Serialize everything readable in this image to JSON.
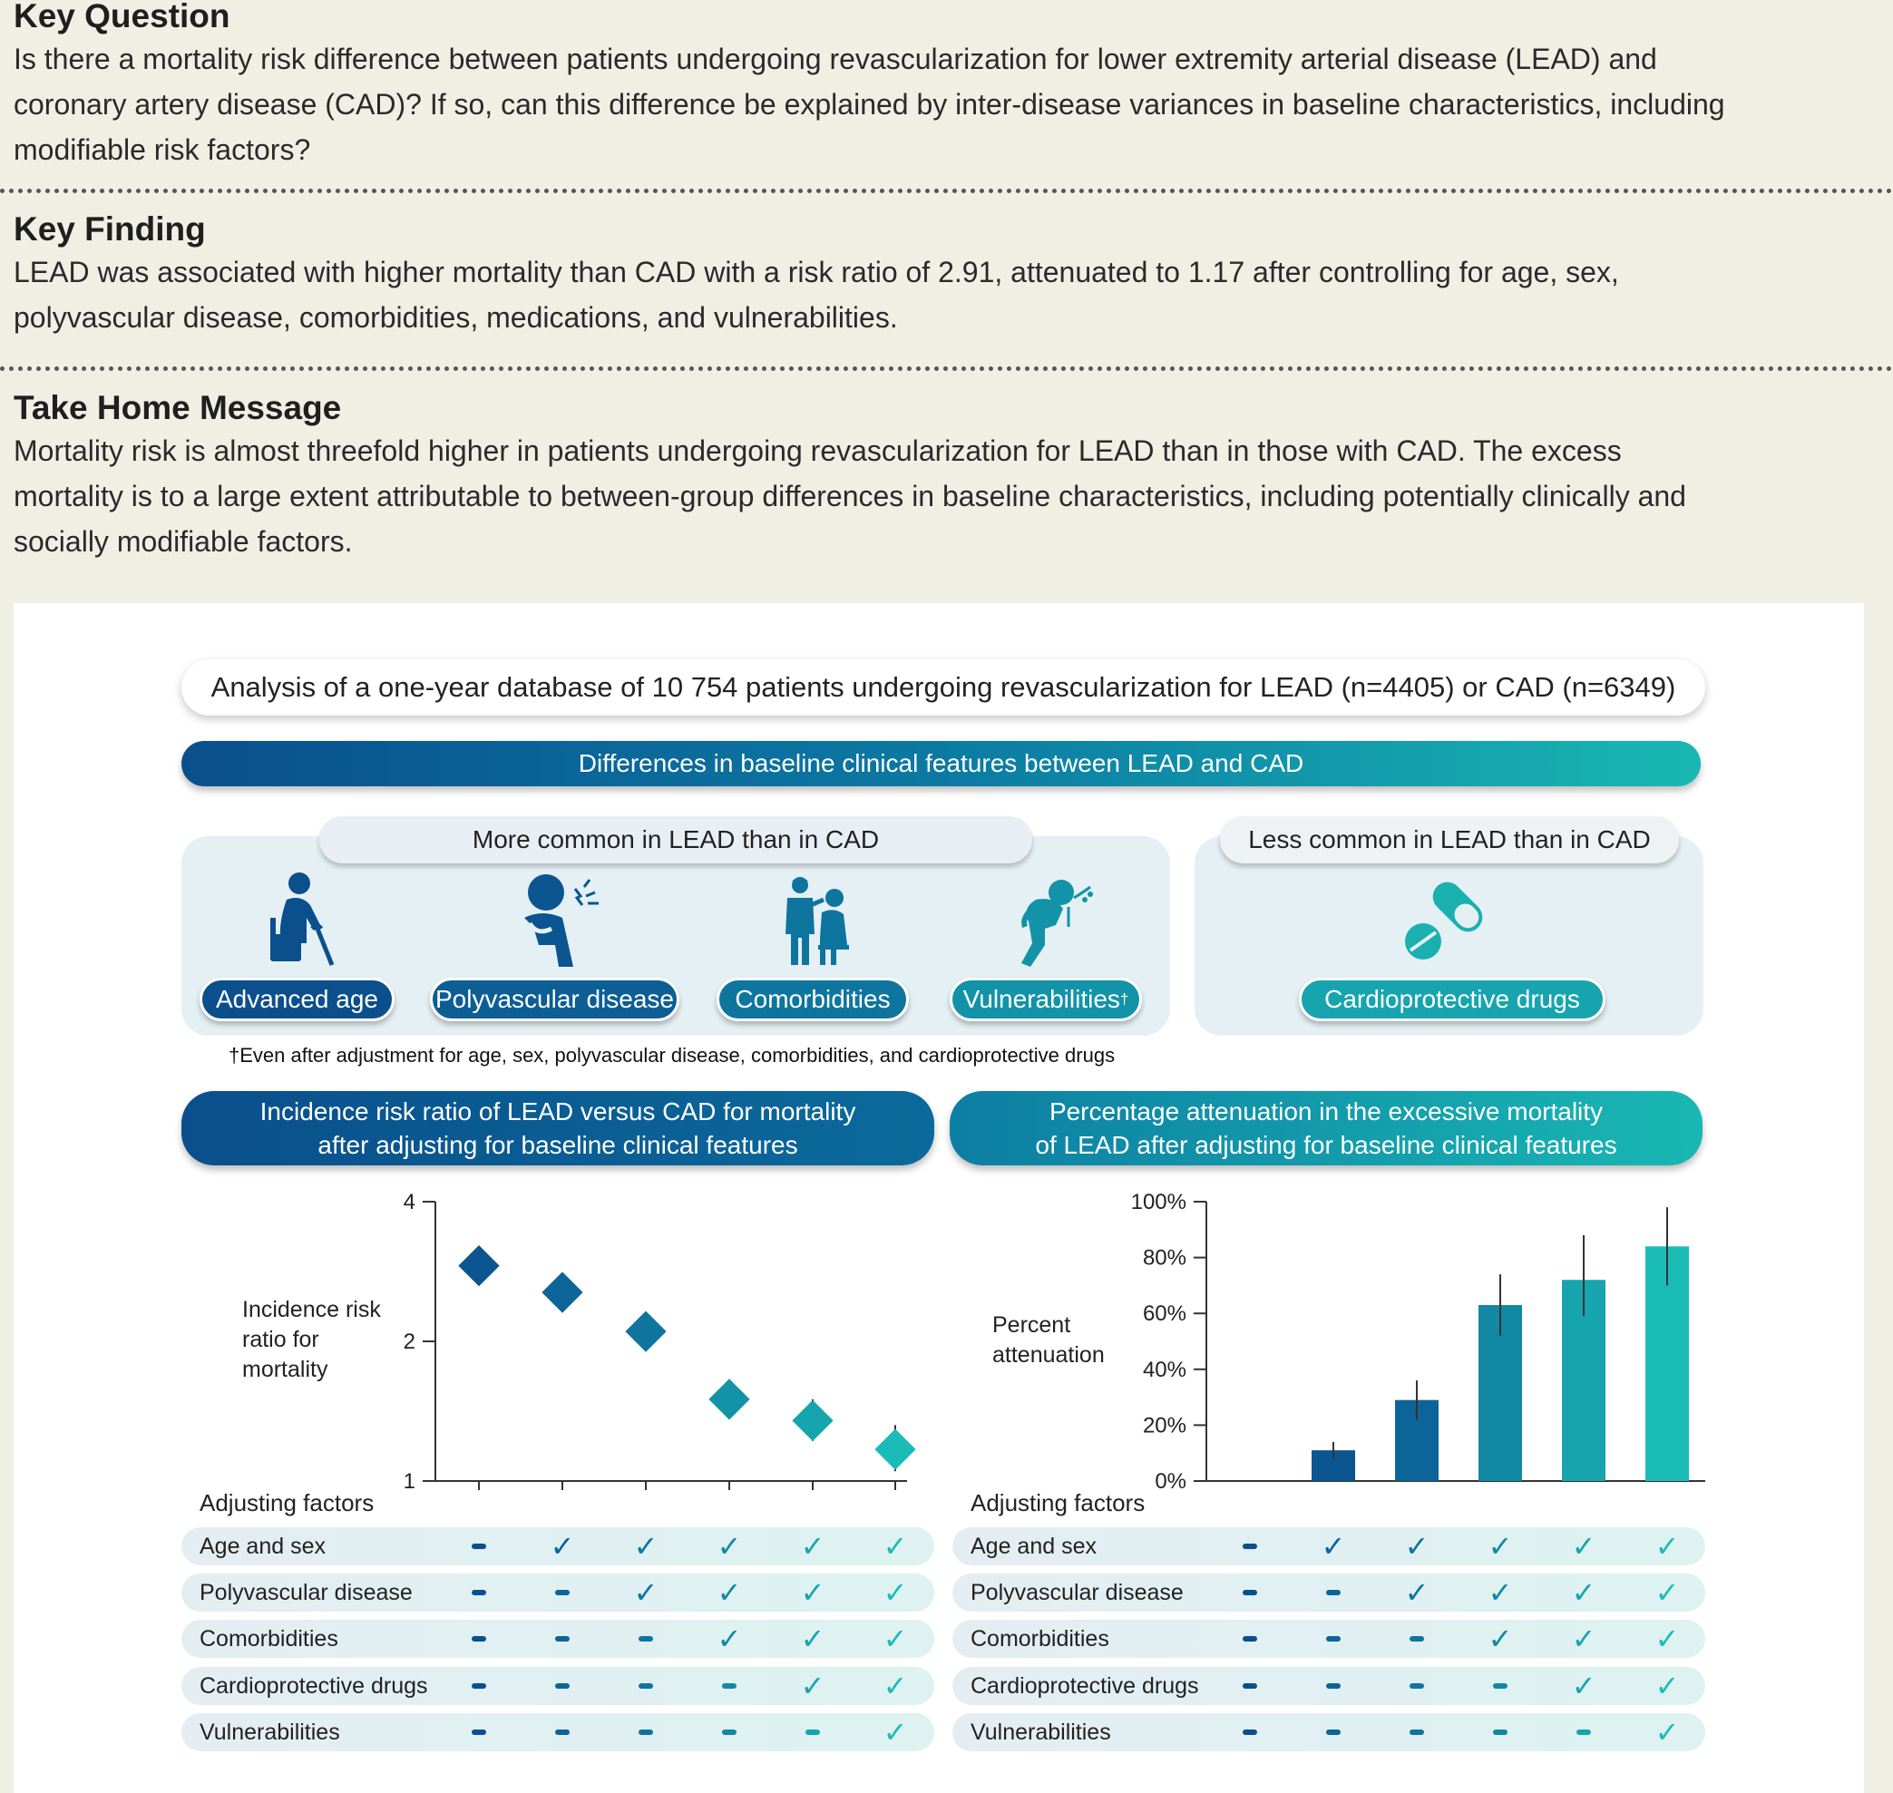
{
  "key_question": {
    "title": "Key Question",
    "line1": "Is there a mortality risk difference between patients undergoing revascularization for lower extremity arterial disease (LEAD) and",
    "line2": "coronary artery disease (CAD)? If so, can this difference be explained by inter-disease variances in baseline characteristics, including",
    "line3": "modifiable risk factors?"
  },
  "key_finding": {
    "title": "Key Finding",
    "line1": "LEAD was associated with higher mortality than CAD with a risk ratio of 2.91, attenuated to 1.17 after controlling for age, sex,",
    "line2": "polyvascular disease, comorbidities, medications, and vulnerabilities."
  },
  "take_home": {
    "title": "Take Home Message",
    "line1": "Mortality risk is almost threefold higher in patients undergoing revascularization for LEAD than in those with CAD. The excess",
    "line2": "mortality is to a large extent attributable to between-group differences in baseline characteristics, including potentially clinically and",
    "line3": "socially modifiable factors."
  },
  "analysis_text": "Analysis of a one-year database of 10 754 patients undergoing revascularization for LEAD (n=4405) or CAD (n=6349)",
  "differences_banner": "Differences in baseline clinical features between LEAD and CAD",
  "more_common": {
    "title": "More common in LEAD than in CAD",
    "items": [
      {
        "label": "Advanced age",
        "icon": "elderly-person-with-cane-icon"
      },
      {
        "label": "Polyvascular disease",
        "icon": "chest-pain-person-icon"
      },
      {
        "label": "Comorbidities",
        "icon": "patient-with-doctor-icon"
      },
      {
        "label": "Vulnerabilities",
        "sup": "†",
        "icon": "person-vomiting-icon"
      }
    ]
  },
  "less_common": {
    "title": "Less common in LEAD than in CAD",
    "items": [
      {
        "label": "Cardioprotective drugs",
        "icon": "pill-capsule-icon"
      }
    ]
  },
  "footnote": "†Even after adjustment for age, sex, polyvascular disease, comorbidities, and cardioprotective drugs",
  "left_banner": {
    "line1": "Incidence risk ratio of LEAD versus CAD for mortality",
    "line2": "after adjusting for baseline clinical features"
  },
  "right_banner": {
    "line1": "Percentage attenuation in the excessive mortality",
    "line2": "of LEAD after adjusting for baseline clinical features"
  },
  "chart_data": [
    {
      "type": "scatter",
      "ylabel": [
        "Incidence risk",
        "ratio for",
        "mortality"
      ],
      "yticks": [
        1,
        2,
        4
      ],
      "yscale": "log",
      "ylim": [
        1,
        4
      ],
      "x": [
        1,
        2,
        3,
        4,
        5,
        6
      ],
      "values": [
        2.91,
        2.55,
        2.1,
        1.5,
        1.35,
        1.17
      ],
      "error_low": [
        2.75,
        2.4,
        1.95,
        1.38,
        1.22,
        1.05
      ],
      "error_high": [
        3.08,
        2.75,
        2.3,
        1.65,
        1.5,
        1.32
      ],
      "colors": [
        "#0b5590",
        "#0d6498",
        "#0e759f",
        "#1293a8",
        "#16a5ae",
        "#1bbcb8"
      ]
    },
    {
      "type": "bar",
      "ylabel": [
        "Percent",
        "attenuation"
      ],
      "yticks": [
        "0%",
        "20%",
        "40%",
        "60%",
        "80%",
        "100%"
      ],
      "ylim": [
        0,
        100
      ],
      "x": [
        1,
        2,
        3,
        4,
        5,
        6
      ],
      "values": [
        null,
        11,
        29,
        63,
        72,
        84
      ],
      "error_low": [
        null,
        8,
        22,
        52,
        59,
        70
      ],
      "error_high": [
        null,
        14,
        36,
        74,
        88,
        98
      ],
      "colors": [
        "#0b5590",
        "#0b5590",
        "#0d6498",
        "#1188a4",
        "#16a5ae",
        "#1bbcb8"
      ]
    }
  ],
  "adjusting_title": "Adjusting factors",
  "adjusting_factors": [
    {
      "label": "Age and sex",
      "marks": [
        0,
        1,
        1,
        1,
        1,
        1
      ]
    },
    {
      "label": "Polyvascular disease",
      "marks": [
        0,
        0,
        1,
        1,
        1,
        1
      ]
    },
    {
      "label": "Comorbidities",
      "marks": [
        0,
        0,
        0,
        1,
        1,
        1
      ]
    },
    {
      "label": "Cardioprotective drugs",
      "marks": [
        0,
        0,
        0,
        0,
        1,
        1
      ]
    },
    {
      "label": "Vulnerabilities",
      "marks": [
        0,
        0,
        0,
        0,
        0,
        1
      ]
    }
  ],
  "mark_colors": [
    "#0b4f8c",
    "#0d6498",
    "#0e759f",
    "#1188a4",
    "#16a5ae",
    "#1bbcb8"
  ]
}
